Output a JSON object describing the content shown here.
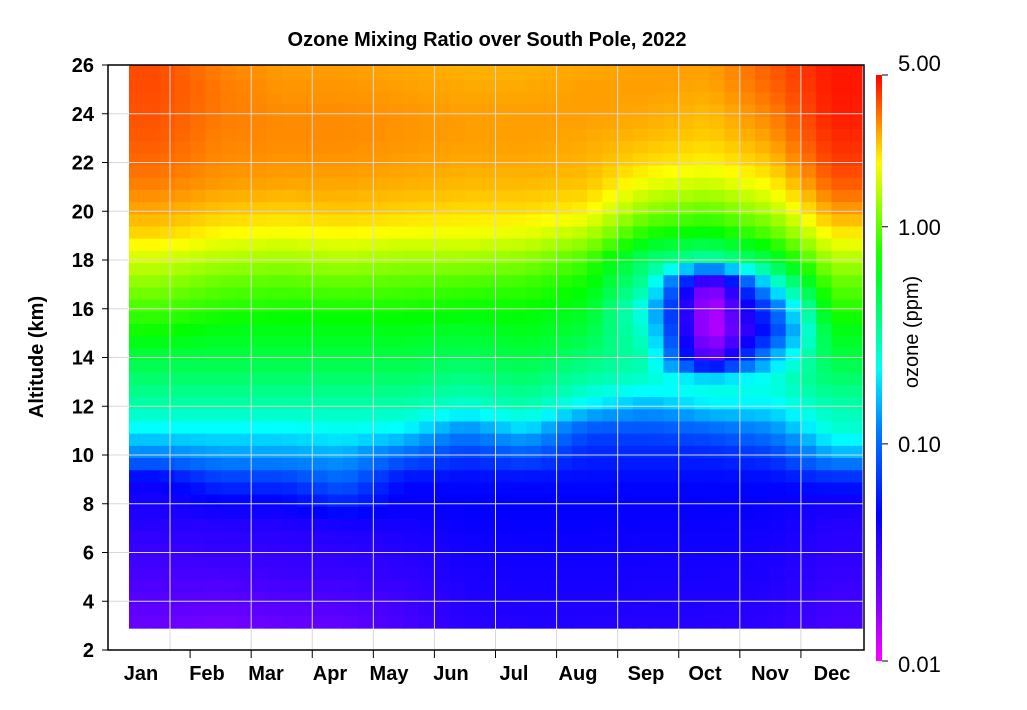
{
  "chart_data": {
    "type": "heatmap",
    "title": "Ozone Mixing Ratio over South Pole, 2022",
    "ylabel": "Altitude (km)",
    "xlabel": "",
    "colorbar_label": "ozone (ppm)",
    "colorbar_scale": "log",
    "colorbar_range": [
      0.01,
      5.0
    ],
    "colorbar_ticks": [
      "5.00",
      "1.00",
      "0.10",
      "0.01"
    ],
    "ylim": [
      2,
      26
    ],
    "y_ticks": [
      "2",
      "4",
      "6",
      "8",
      "10",
      "12",
      "14",
      "16",
      "18",
      "20",
      "22",
      "24",
      "26"
    ],
    "months": [
      "Jan",
      "Feb",
      "Mar",
      "Apr",
      "May",
      "Jun",
      "Jul",
      "Aug",
      "Sep",
      "Oct",
      "Nov",
      "Dec"
    ],
    "data_altitude_range_km": [
      2.9,
      26
    ],
    "grid": true,
    "altitudes_km": [
      3,
      4,
      5,
      6,
      7,
      8,
      9,
      10,
      11,
      12,
      13,
      14,
      15,
      16,
      17,
      18,
      19,
      20,
      21,
      22,
      23,
      24,
      25,
      26
    ],
    "profiles_ppm": [
      {
        "month": "Jan",
        "values": [
          0.022,
          0.025,
          0.028,
          0.031,
          0.035,
          0.04,
          0.045,
          0.12,
          0.2,
          0.3,
          0.4,
          0.5,
          0.7,
          0.9,
          1.2,
          1.6,
          2.2,
          2.7,
          3.1,
          3.4,
          3.6,
          3.7,
          3.8,
          3.8
        ]
      },
      {
        "month": "Feb",
        "values": [
          0.02,
          0.024,
          0.028,
          0.032,
          0.036,
          0.045,
          0.07,
          0.14,
          0.2,
          0.3,
          0.4,
          0.5,
          0.6,
          0.8,
          1.0,
          1.4,
          1.9,
          2.4,
          2.8,
          3.0,
          3.1,
          3.2,
          3.2,
          3.1
        ]
      },
      {
        "month": "Mar",
        "values": [
          0.022,
          0.026,
          0.03,
          0.033,
          0.036,
          0.045,
          0.07,
          0.14,
          0.2,
          0.3,
          0.4,
          0.5,
          0.6,
          0.75,
          0.95,
          1.3,
          1.8,
          2.3,
          2.7,
          2.9,
          3.0,
          3.0,
          2.9,
          2.8
        ]
      },
      {
        "month": "Apr",
        "values": [
          0.023,
          0.027,
          0.031,
          0.034,
          0.038,
          0.06,
          0.1,
          0.15,
          0.22,
          0.3,
          0.4,
          0.5,
          0.6,
          0.75,
          1.0,
          1.4,
          1.9,
          2.4,
          2.7,
          2.9,
          3.0,
          3.0,
          2.9,
          2.8
        ]
      },
      {
        "month": "May",
        "values": [
          0.028,
          0.03,
          0.033,
          0.036,
          0.04,
          0.045,
          0.05,
          0.1,
          0.2,
          0.3,
          0.4,
          0.5,
          0.6,
          0.75,
          0.95,
          1.3,
          1.8,
          2.3,
          2.6,
          2.8,
          2.9,
          2.9,
          2.8,
          2.7
        ]
      },
      {
        "month": "Jun",
        "values": [
          0.035,
          0.037,
          0.039,
          0.041,
          0.044,
          0.047,
          0.05,
          0.07,
          0.12,
          0.25,
          0.35,
          0.45,
          0.55,
          0.7,
          0.9,
          1.3,
          1.8,
          2.2,
          2.5,
          2.7,
          2.8,
          2.8,
          2.7,
          2.6
        ]
      },
      {
        "month": "Jul",
        "values": [
          0.037,
          0.039,
          0.041,
          0.043,
          0.045,
          0.047,
          0.05,
          0.09,
          0.18,
          0.3,
          0.4,
          0.5,
          0.6,
          0.7,
          0.85,
          1.2,
          1.7,
          2.2,
          2.5,
          2.7,
          2.8,
          2.8,
          2.7,
          2.6
        ]
      },
      {
        "month": "Aug",
        "values": [
          0.037,
          0.039,
          0.041,
          0.043,
          0.045,
          0.047,
          0.05,
          0.06,
          0.08,
          0.2,
          0.3,
          0.4,
          0.5,
          0.6,
          0.7,
          0.9,
          1.4,
          2.0,
          2.4,
          2.6,
          2.7,
          2.8,
          2.8,
          2.7
        ]
      },
      {
        "month": "Sep",
        "values": [
          0.036,
          0.038,
          0.04,
          0.042,
          0.044,
          0.046,
          0.05,
          0.06,
          0.08,
          0.15,
          0.25,
          0.3,
          0.25,
          0.2,
          0.3,
          0.4,
          0.7,
          1.2,
          1.7,
          2.2,
          2.5,
          2.7,
          2.8,
          2.8
        ]
      },
      {
        "month": "Oct",
        "values": [
          0.036,
          0.038,
          0.04,
          0.042,
          0.044,
          0.046,
          0.05,
          0.06,
          0.09,
          0.2,
          0.25,
          0.02,
          0.012,
          0.012,
          0.015,
          0.3,
          0.6,
          1.0,
          1.5,
          2.0,
          2.3,
          2.5,
          2.7,
          2.8
        ]
      },
      {
        "month": "Nov",
        "values": [
          0.034,
          0.036,
          0.038,
          0.04,
          0.042,
          0.045,
          0.05,
          0.07,
          0.12,
          0.2,
          0.25,
          0.15,
          0.06,
          0.08,
          0.2,
          0.5,
          0.9,
          1.4,
          1.9,
          2.4,
          2.8,
          3.1,
          3.4,
          3.6
        ]
      },
      {
        "month": "Dec",
        "values": [
          0.028,
          0.03,
          0.032,
          0.034,
          0.036,
          0.04,
          0.06,
          0.15,
          0.25,
          0.3,
          0.4,
          0.5,
          0.6,
          0.8,
          1.0,
          1.4,
          2.0,
          2.8,
          3.5,
          4.0,
          4.3,
          4.5,
          4.6,
          4.6
        ]
      }
    ]
  }
}
